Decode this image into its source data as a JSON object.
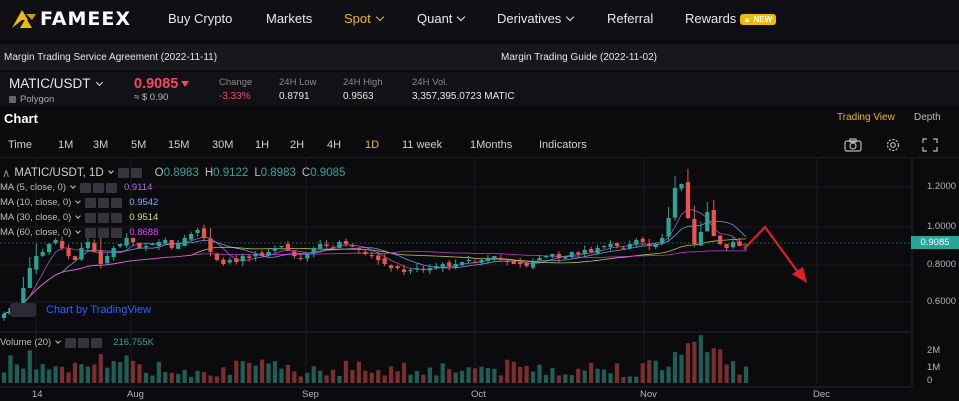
{
  "nav": {
    "logo_text": "FAMEEX",
    "items": [
      {
        "label": "Buy Crypto"
      },
      {
        "label": "Markets"
      },
      {
        "label": "Spot"
      },
      {
        "label": "Quant"
      },
      {
        "label": "Derivatives"
      },
      {
        "label": "Referral"
      },
      {
        "label": "Rewards"
      }
    ],
    "new_badge": "NEW",
    "accent": "#f0b90b"
  },
  "notices": [
    "Margin Trading Service Agreement (2022-11-11)",
    "Margin Trading Guide (2022-11-02)"
  ],
  "ticker": {
    "pair": "MATIC/USDT",
    "network": "Polygon",
    "price": "0.9085",
    "price_usd": "≈ $ 0.90",
    "stats": [
      {
        "label": "Change",
        "value": "-3.33%"
      },
      {
        "label": "24H Low",
        "value": "0.8791"
      },
      {
        "label": "24H High",
        "value": "0.9563"
      },
      {
        "label": "24H Vol.",
        "value": "3,357,395.0723 MATIC"
      }
    ]
  },
  "chart_header": {
    "title": "Chart",
    "trading_view": "Trading View",
    "depth": "Depth"
  },
  "timeframes": [
    "Time",
    "1M",
    "3M",
    "5M",
    "15M",
    "30M",
    "1H",
    "2H",
    "4H",
    "1D",
    "11 week",
    "1Months",
    "Indicators"
  ],
  "toolbar_icons": [
    "camera-icon",
    "gear-icon",
    "fullscreen-icon"
  ],
  "chart_legend": {
    "symbol": "MATIC/USDT, 1D",
    "ohlc": [
      {
        "label": "O",
        "value": "0.8983"
      },
      {
        "label": "H",
        "value": "0.9122"
      },
      {
        "label": "L",
        "value": "0.8983"
      },
      {
        "label": "C",
        "value": "0.9085"
      }
    ],
    "ma": [
      {
        "label": "MA (5, close, 0)",
        "value": "0.9114",
        "color": "#b36bd6"
      },
      {
        "label": "MA (10, close, 0)",
        "value": "0.9542",
        "color": "#7fb3ff"
      },
      {
        "label": "MA (30, close, 0)",
        "value": "0.9514",
        "color": "#d4e157"
      },
      {
        "label": "MA (60, close, 0)",
        "value": "0.8688",
        "color": "#e040fb"
      }
    ],
    "volume_label": "Volume (20)",
    "volume_value": "216.755K",
    "attribution": "Chart by TradingView"
  },
  "chart_data": {
    "type": "candlestick",
    "price_axis_ticks": [
      "1.2000",
      "1.0000",
      "0.8000",
      "0.6000"
    ],
    "volume_axis_ticks": [
      "2M",
      "1M",
      "0"
    ],
    "last_price_tag": "0.9085",
    "x_ticks": [
      "14",
      "Aug",
      "Sep",
      "Oct",
      "Nov",
      "Dec"
    ],
    "ylim": [
      0.52,
      1.32
    ],
    "series_close_approx": [
      0.57,
      0.6,
      0.62,
      0.7,
      0.8,
      0.86,
      0.88,
      0.92,
      0.94,
      0.9,
      0.86,
      0.84,
      0.9,
      0.93,
      0.88,
      0.82,
      0.86,
      0.9,
      0.92,
      0.95,
      0.93,
      0.9,
      0.91,
      0.92,
      0.93,
      0.94,
      0.9,
      0.92,
      0.95,
      0.97,
      0.99,
      0.95,
      0.88,
      0.84,
      0.82,
      0.84,
      0.83,
      0.86,
      0.85,
      0.87,
      0.86,
      0.88,
      0.9,
      0.91,
      0.89,
      0.86,
      0.85,
      0.87,
      0.9,
      0.92,
      0.91,
      0.9,
      0.93,
      0.92,
      0.91,
      0.89,
      0.87,
      0.86,
      0.84,
      0.82,
      0.8,
      0.8,
      0.78,
      0.79,
      0.8,
      0.79,
      0.8,
      0.81,
      0.82,
      0.81,
      0.82,
      0.83,
      0.84,
      0.83,
      0.84,
      0.85,
      0.86,
      0.84,
      0.83,
      0.82,
      0.82,
      0.81,
      0.83,
      0.85,
      0.86,
      0.87,
      0.85,
      0.86,
      0.88,
      0.87,
      0.89,
      0.88,
      0.9,
      0.91,
      0.92,
      0.91,
      0.9,
      0.92,
      0.94,
      0.93,
      0.91,
      0.92,
      0.95,
      1.05,
      1.2,
      1.22,
      1.05,
      0.92,
      0.98,
      1.08,
      0.96,
      0.92,
      0.9,
      0.93,
      0.91,
      0.9085
    ],
    "annotation": "red projected downward arrow"
  }
}
